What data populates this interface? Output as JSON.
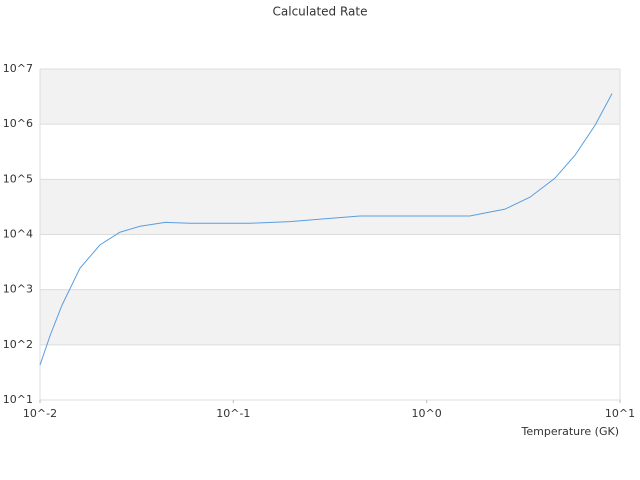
{
  "chart_data": {
    "type": "line",
    "title": "Calculated Rate",
    "x_label": "Temperature (GK)",
    "log_x": true,
    "log_y": true,
    "grid": true,
    "xlim": [
      0.01,
      10
    ],
    "ylim": [
      10,
      10000000
    ],
    "xticks": [
      {
        "value": 0.01,
        "label": "10^-2"
      },
      {
        "value": 0.1,
        "label": "10^-1"
      },
      {
        "value": 1,
        "label": "10^0"
      },
      {
        "value": 10,
        "label": "10^1"
      }
    ],
    "yticks": [
      {
        "value": 10,
        "label": "10^1"
      },
      {
        "value": 100,
        "label": "10^2"
      },
      {
        "value": 1000,
        "label": "10^3"
      },
      {
        "value": 10000,
        "label": "10^4"
      },
      {
        "value": 100000,
        "label": "10^5"
      },
      {
        "value": 1000000,
        "label": "10^6"
      },
      {
        "value": 10000000,
        "label": "10^7"
      }
    ],
    "x": [
      0.01,
      0.0113,
      0.013,
      0.0161,
      0.0204,
      0.0259,
      0.0329,
      0.0444,
      0.0597,
      0.122,
      0.196,
      0.316,
      0.452,
      1.67,
      2.54,
      3.42,
      4.61,
      5.86,
      7.43,
      9.1
    ],
    "series": [
      {
        "color": "#5a9ee0",
        "values": [
          43,
          150,
          525,
          2450,
          6450,
          11000,
          14100,
          16600,
          16000,
          16000,
          17100,
          19600,
          21600,
          21600,
          28800,
          47400,
          105000,
          275000,
          955000,
          3600000
        ]
      }
    ]
  }
}
